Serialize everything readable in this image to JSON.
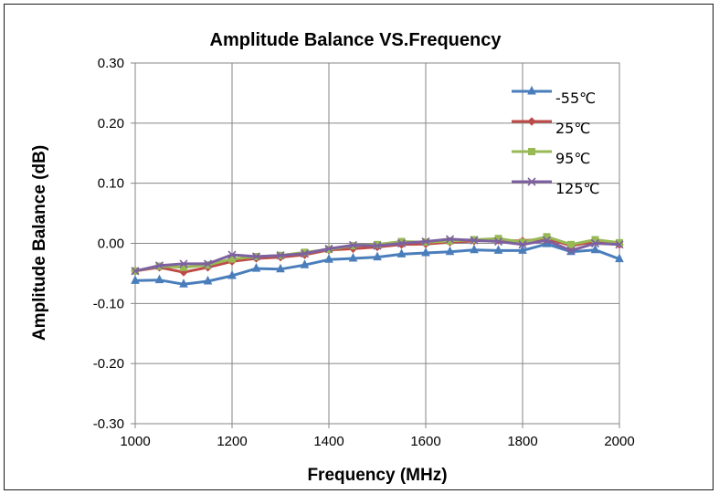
{
  "chart_data": {
    "type": "line",
    "title": "Amplitude Balance VS.Frequency",
    "xlabel": "Frequency (MHz)",
    "ylabel": "Amplitude Balance (dB)",
    "xlim": [
      1000,
      2000
    ],
    "ylim": [
      -0.3,
      0.3
    ],
    "x_ticks": [
      "1000",
      "1200",
      "1400",
      "1600",
      "1800",
      "2000"
    ],
    "y_ticks": [
      "0.30",
      "0.20",
      "0.10",
      "0.00",
      "-0.10",
      "-0.20",
      "-0.30"
    ],
    "x_tick_values": [
      1000,
      1200,
      1400,
      1600,
      1800,
      2000
    ],
    "y_tick_values": [
      0.3,
      0.2,
      0.1,
      0.0,
      -0.1,
      -0.2,
      -0.3
    ],
    "grid": true,
    "legend_position": "top-right",
    "x": [
      1000,
      1050,
      1100,
      1150,
      1200,
      1250,
      1300,
      1350,
      1400,
      1450,
      1500,
      1550,
      1600,
      1650,
      1700,
      1750,
      1800,
      1850,
      1900,
      1950,
      2000
    ],
    "series": [
      {
        "name": "-55℃",
        "color": "#4a7ebb",
        "marker": "triangle",
        "values": [
          -0.062,
          -0.061,
          -0.068,
          -0.063,
          -0.054,
          -0.042,
          -0.043,
          -0.036,
          -0.027,
          -0.025,
          -0.023,
          -0.018,
          -0.016,
          -0.014,
          -0.011,
          -0.012,
          -0.012,
          -0.001,
          -0.014,
          -0.011,
          -0.026
        ]
      },
      {
        "name": "25℃",
        "color": "#be4b48",
        "marker": "diamond",
        "values": [
          -0.046,
          -0.04,
          -0.048,
          -0.04,
          -0.03,
          -0.025,
          -0.023,
          -0.019,
          -0.011,
          -0.009,
          -0.006,
          -0.002,
          -0.001,
          0.002,
          0.004,
          0.005,
          0.004,
          0.008,
          -0.004,
          0.003,
          -0.002
        ]
      },
      {
        "name": "95℃",
        "color": "#98b954",
        "marker": "square",
        "values": [
          -0.046,
          -0.038,
          -0.04,
          -0.036,
          -0.026,
          -0.022,
          -0.02,
          -0.015,
          -0.01,
          -0.004,
          -0.002,
          0.003,
          0.002,
          0.004,
          0.006,
          0.008,
          0.002,
          0.011,
          -0.002,
          0.006,
          0.001
        ]
      },
      {
        "name": "125℃",
        "color": "#7d60a0",
        "marker": "x",
        "values": [
          -0.046,
          -0.037,
          -0.034,
          -0.034,
          -0.019,
          -0.022,
          -0.02,
          -0.017,
          -0.009,
          -0.003,
          -0.004,
          0.0,
          0.003,
          0.007,
          0.005,
          0.003,
          -0.002,
          0.005,
          -0.012,
          0.0,
          -0.002
        ]
      }
    ]
  }
}
